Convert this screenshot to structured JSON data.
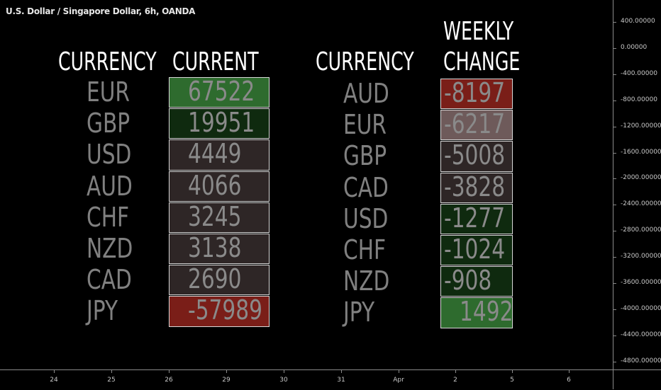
{
  "symbol_title": "U.S. Dollar / Singapore Dollar, 6h, OANDA",
  "colors": {
    "background": "#000000",
    "strong_green": "#2e6b2e",
    "dark_green": "#0f2a0f",
    "neutral": "#2e2626",
    "red": "#7a1e18",
    "light_gray_red": "#6e5a5a",
    "text_gray": "#808080"
  },
  "chart_data": [
    {
      "type": "table",
      "headers": [
        "CURRENCY",
        "CURRENT"
      ],
      "rows": [
        {
          "currency": "EUR",
          "value": "67522",
          "shade": "strong_green"
        },
        {
          "currency": "GBP",
          "value": "19951",
          "shade": "dark_green"
        },
        {
          "currency": "USD",
          "value": "4449",
          "shade": "neutral"
        },
        {
          "currency": "AUD",
          "value": "4066",
          "shade": "neutral"
        },
        {
          "currency": "CHF",
          "value": "3245",
          "shade": "neutral"
        },
        {
          "currency": "NZD",
          "value": "3138",
          "shade": "neutral"
        },
        {
          "currency": "CAD",
          "value": "2690",
          "shade": "neutral"
        },
        {
          "currency": "JPY",
          "value": "-57989",
          "shade": "red"
        }
      ]
    },
    {
      "type": "table",
      "headers": [
        "CURRENCY",
        "WEEKLY CHANGE"
      ],
      "header_lines": [
        "WEEKLY",
        "CHANGE"
      ],
      "rows": [
        {
          "currency": "AUD",
          "value": "-8197",
          "shade": "red"
        },
        {
          "currency": "EUR",
          "value": "-6217",
          "shade": "light_gray_red"
        },
        {
          "currency": "GBP",
          "value": "-5008",
          "shade": "neutral"
        },
        {
          "currency": "CAD",
          "value": "-3828",
          "shade": "neutral"
        },
        {
          "currency": "USD",
          "value": "-1277",
          "shade": "dark_green"
        },
        {
          "currency": "CHF",
          "value": "-1024",
          "shade": "dark_green"
        },
        {
          "currency": "NZD",
          "value": "-908",
          "shade": "dark_green"
        },
        {
          "currency": "JPY",
          "value": "1492",
          "shade": "strong_green"
        }
      ]
    }
  ],
  "y_axis": {
    "ticks": [
      "400.00000",
      "0.00000",
      "-400.00000",
      "-800.00000",
      "-1200.00000",
      "-1600.00000",
      "-2000.00000",
      "-2400.00000",
      "-2800.00000",
      "-3200.00000",
      "-3600.00000",
      "-4000.00000",
      "-4400.00000",
      "-4800.00000"
    ],
    "range": [
      -4800,
      400
    ]
  },
  "x_axis": {
    "ticks": [
      "24",
      "25",
      "26",
      "29",
      "30",
      "31",
      "Apr",
      "2",
      "5",
      "6"
    ]
  }
}
